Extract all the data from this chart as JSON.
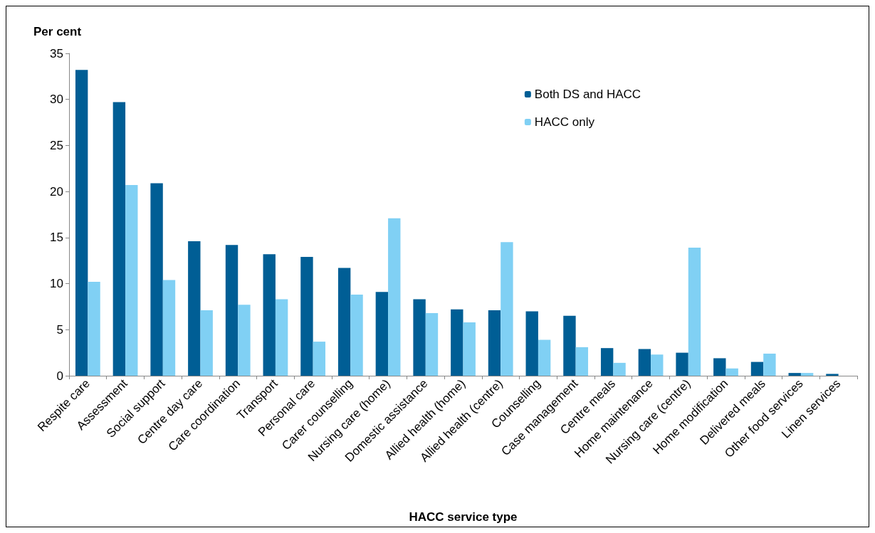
{
  "chart_data": {
    "type": "bar",
    "ylabel": "Per cent",
    "xlabel": "HACC service type",
    "categories": [
      "Respite care",
      "Assessment",
      "Social support",
      "Centre day care",
      "Care coordination",
      "Transport",
      "Personal care",
      "Carer counselling",
      "Nursing care (home)",
      "Domestic assistance",
      "Allied health (home)",
      "Allied health (centre)",
      "Counselling",
      "Case management",
      "Centre meals",
      "Home maintenance",
      "Nursing care (centre)",
      "Home modification",
      "Delivered meals",
      "Other food services",
      "Linen services"
    ],
    "series": [
      {
        "name": "Both DS and HACC",
        "color": "#005e95",
        "values": [
          33.2,
          29.7,
          20.9,
          14.6,
          14.2,
          13.2,
          12.9,
          11.7,
          9.1,
          8.3,
          7.2,
          7.1,
          7.0,
          6.5,
          3.0,
          2.9,
          2.5,
          1.9,
          1.5,
          0.3,
          0.2
        ]
      },
      {
        "name": "HACC only",
        "color": "#80d0f4",
        "values": [
          10.2,
          20.7,
          10.4,
          7.1,
          7.7,
          8.3,
          3.7,
          8.8,
          17.1,
          6.8,
          5.8,
          14.5,
          3.9,
          3.1,
          1.4,
          2.3,
          13.9,
          0.8,
          2.4,
          0.3,
          null
        ]
      }
    ],
    "ylim": [
      0,
      35
    ],
    "yticks": [
      0,
      5,
      10,
      15,
      20,
      25,
      30,
      35
    ],
    "grid": false,
    "legend": "top right"
  }
}
